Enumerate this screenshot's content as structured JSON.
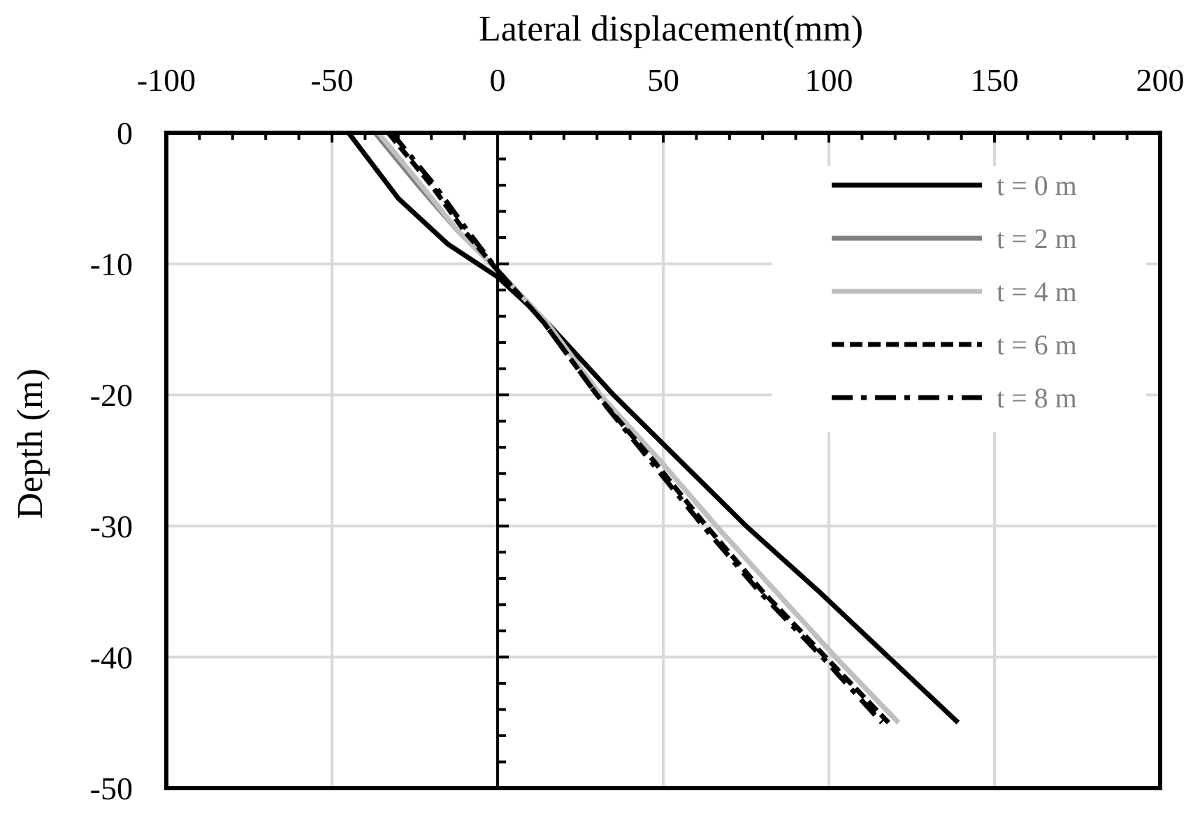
{
  "chart_data": {
    "type": "line",
    "xlabel": "Lateral displacement(mm)",
    "ylabel": "Depth (m)",
    "xlim": [
      -100,
      200
    ],
    "ylim": [
      -50,
      0
    ],
    "x_ticks": [
      -100,
      -50,
      0,
      50,
      100,
      150,
      200
    ],
    "y_ticks": [
      0,
      -10,
      -20,
      -30,
      -40,
      -50
    ],
    "x_tick_labels": [
      "-100",
      "-50",
      "0",
      "50",
      "100",
      "150",
      "200"
    ],
    "y_tick_labels": [
      "0",
      "-10",
      "-20",
      "-30",
      "-40",
      "-50"
    ],
    "x_axis_position": "top",
    "grid": true,
    "legend_position": "top-right",
    "series": [
      {
        "name": "t = 0 m",
        "color": "#000000",
        "dash": "solid",
        "points": [
          [
            -45,
            0
          ],
          [
            -30,
            -5
          ],
          [
            -15,
            -8.5
          ],
          [
            0,
            -11
          ],
          [
            15,
            -14.5
          ],
          [
            35,
            -20
          ],
          [
            55,
            -25
          ],
          [
            75,
            -30
          ],
          [
            97,
            -35
          ],
          [
            118,
            -40
          ],
          [
            139,
            -45
          ]
        ]
      },
      {
        "name": "t = 2 m",
        "color": "#808080",
        "dash": "solid",
        "points": [
          [
            -37,
            0
          ],
          [
            -24,
            -4
          ],
          [
            -12,
            -7.5
          ],
          [
            0,
            -10.5
          ],
          [
            15,
            -14.5
          ],
          [
            31,
            -20
          ],
          [
            49,
            -25
          ],
          [
            66,
            -30
          ],
          [
            84,
            -35
          ],
          [
            102,
            -40
          ],
          [
            121,
            -45
          ]
        ]
      },
      {
        "name": "t = 4 m",
        "color": "#c0c0c0",
        "dash": "solid",
        "points": [
          [
            -36,
            0
          ],
          [
            -23,
            -4
          ],
          [
            -12,
            -7.5
          ],
          [
            0,
            -10.5
          ],
          [
            15,
            -14.5
          ],
          [
            31,
            -20
          ],
          [
            49,
            -25
          ],
          [
            66,
            -30
          ],
          [
            84,
            -35
          ],
          [
            102,
            -40
          ],
          [
            121,
            -45
          ]
        ]
      },
      {
        "name": "t = 6 m",
        "color": "#000000",
        "dash": "dashed",
        "points": [
          [
            -33,
            0
          ],
          [
            -20,
            -4
          ],
          [
            -10,
            -7.5
          ],
          [
            0,
            -10.5
          ],
          [
            14,
            -14.5
          ],
          [
            30,
            -20
          ],
          [
            47,
            -25
          ],
          [
            63,
            -30
          ],
          [
            80,
            -35
          ],
          [
            99,
            -40
          ],
          [
            118,
            -45
          ]
        ]
      },
      {
        "name": "t = 8 m",
        "color": "#000000",
        "dash": "dashdot",
        "points": [
          [
            -32,
            0
          ],
          [
            -19,
            -4
          ],
          [
            -9,
            -7.5
          ],
          [
            0,
            -10.5
          ],
          [
            14,
            -14.5
          ],
          [
            30,
            -20
          ],
          [
            46,
            -25
          ],
          [
            62,
            -30
          ],
          [
            79,
            -35
          ],
          [
            98,
            -40
          ],
          [
            116,
            -45
          ]
        ]
      }
    ]
  }
}
